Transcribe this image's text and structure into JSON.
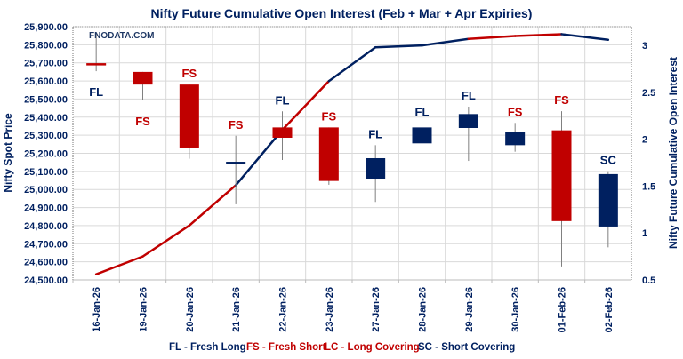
{
  "chart_data": {
    "type": "candlestick+line",
    "title": "Nifty Future Cumulative Open Interest (Feb + Mar + Apr Expiries)",
    "watermark": "FNODATA.COM",
    "ylabel_left": "Nifty Spot Price",
    "ylabel_right": "Nifty Future Cumulative Open Interest",
    "ylim_left": [
      24500,
      25900
    ],
    "ylim_right": [
      0.5,
      3.2
    ],
    "yticks_left": [
      "24,500.00",
      "24,600.00",
      "24,700.00",
      "24,800.00",
      "24,900.00",
      "25,000.00",
      "25,100.00",
      "25,200.00",
      "25,300.00",
      "25,400.00",
      "25,500.00",
      "25,600.00",
      "25,700.00",
      "25,800.00",
      "25,900.00"
    ],
    "yticks_left_values": [
      24500,
      24600,
      24700,
      24800,
      24900,
      25000,
      25100,
      25200,
      25300,
      25400,
      25500,
      25600,
      25700,
      25800,
      25900
    ],
    "yticks_right": [
      "0.5",
      "1",
      "1.5",
      "2",
      "2.5",
      "3"
    ],
    "yticks_right_values": [
      0.5,
      1,
      1.5,
      2,
      2.5,
      3
    ],
    "grid": true,
    "categories": [
      "16-Jan-26",
      "19-Jan-26",
      "20-Jan-26",
      "21-Jan-26",
      "22-Jan-26",
      "23-Jan-26",
      "27-Jan-26",
      "28-Jan-26",
      "29-Jan-26",
      "30-Jan-26",
      "01-Feb-26",
      "02-Feb-26"
    ],
    "candles": [
      {
        "open": 25692,
        "high": 25860,
        "low": 25654,
        "close": 25692,
        "color": "red",
        "label": "FL"
      },
      {
        "open": 25650,
        "high": 25650,
        "low": 25492,
        "close": 25580,
        "color": "red",
        "label": "FS"
      },
      {
        "open": 25580,
        "high": 25580,
        "low": 25170,
        "close": 25232,
        "color": "red",
        "label": "FS"
      },
      {
        "open": 25147,
        "high": 25297,
        "low": 24918,
        "close": 25147,
        "color": "blue",
        "label": "FS"
      },
      {
        "open": 25343,
        "high": 25432,
        "low": 25163,
        "close": 25286,
        "color": "red",
        "label": "FL"
      },
      {
        "open": 25343,
        "high": 25343,
        "low": 25026,
        "close": 25047,
        "color": "red",
        "label": "FS"
      },
      {
        "open": 25060,
        "high": 25245,
        "low": 24931,
        "close": 25173,
        "color": "blue",
        "label": "FL"
      },
      {
        "open": 25255,
        "high": 25368,
        "low": 25184,
        "close": 25343,
        "color": "blue",
        "label": "FL"
      },
      {
        "open": 25340,
        "high": 25458,
        "low": 25158,
        "close": 25417,
        "color": "blue",
        "label": "FL"
      },
      {
        "open": 25245,
        "high": 25368,
        "low": 25209,
        "close": 25317,
        "color": "blue",
        "label": "FS"
      },
      {
        "open": 25327,
        "high": 25433,
        "low": 24574,
        "close": 24825,
        "color": "red",
        "label": "FS"
      },
      {
        "open": 24795,
        "high": 25101,
        "low": 24680,
        "close": 25085,
        "color": "blue",
        "label": "SC"
      }
    ],
    "open_interest": [
      0.56,
      0.75,
      1.08,
      1.51,
      2.1,
      2.62,
      2.98,
      3.0,
      3.07,
      3.1,
      3.12,
      3.06
    ],
    "legend": [
      {
        "text": "FL - Fresh Long",
        "color": "#002060"
      },
      {
        "text": "FS - Fresh Short",
        "color": "#C00000"
      },
      {
        "text": "LC - Long Covering",
        "color": "#C00000"
      },
      {
        "text": "SC - Short Covering",
        "color": "#002060"
      }
    ],
    "legend_position": "bottom",
    "colors": {
      "blue": "#002060",
      "red": "#C00000",
      "grid": "#d9d9d9"
    }
  }
}
